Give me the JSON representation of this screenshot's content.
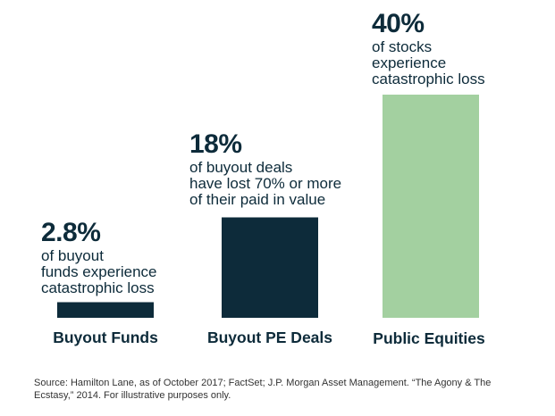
{
  "chart_data": {
    "type": "bar",
    "categories": [
      "Buyout Funds",
      "Buyout PE Deals",
      "Public Equities"
    ],
    "values": [
      2.8,
      18,
      40
    ],
    "colors": [
      "#0d2b3a",
      "#0d2b3a",
      "#a3d0a0"
    ],
    "annotations": [
      {
        "value_text": "2.8%",
        "text": "of buyout\nfunds experience\ncatastrophic loss"
      },
      {
        "value_text": "18%",
        "text": "of buyout deals\nhave lost 70% or more\nof their paid in value"
      },
      {
        "value_text": "40%",
        "text": "of stocks\nexperience\ncatastrophic loss"
      }
    ],
    "title": "",
    "xlabel": "",
    "ylabel": "",
    "ylim": [
      0,
      40
    ]
  },
  "source_note": "Source: Hamilton Lane, as of October 2017; FactSet; J.P. Morgan Asset Management. “The Agony & The Ecstasy,” 2014. For illustrative purposes only."
}
